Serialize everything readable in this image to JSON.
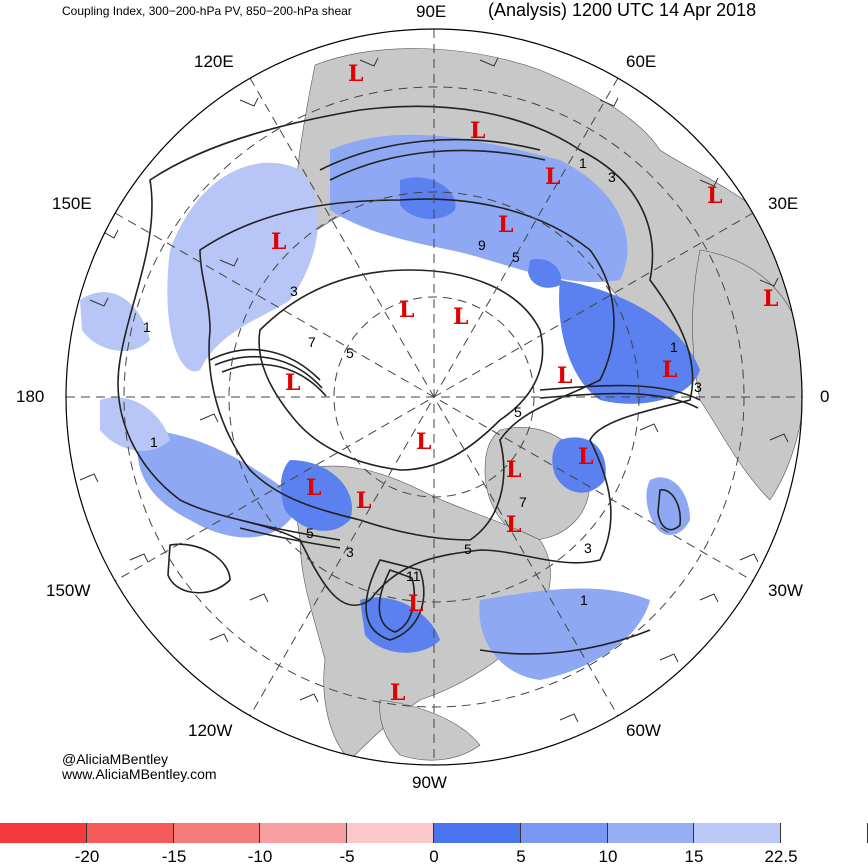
{
  "header": {
    "left": "Coupling Index, 300−200-hPa PV, 850−200-hPa shear",
    "right": "(Analysis) 1200 UTC 14 Apr 2018"
  },
  "longitudes": {
    "e90": "90E",
    "e60": "60E",
    "e120": "120E",
    "e150": "150E",
    "e30": "30E",
    "l180": "180",
    "l0": "0",
    "w150": "150W",
    "w30": "30W",
    "w120": "120W",
    "w60": "60W",
    "w90": "90W"
  },
  "credits": {
    "handle": "@AliciaMBentley",
    "site": "www.AliciaMBentley.com"
  },
  "lows": {
    "symbol": "L",
    "count": 21
  },
  "contour_labels": [
    "1",
    "3",
    "5",
    "7",
    "9",
    "11"
  ],
  "colorbar": {
    "colors": [
      "#f43b3b",
      "#f5595a",
      "#f67c7c",
      "#f8a0a1",
      "#fbc8c9",
      "#4a73f0",
      "#7897f2",
      "#98aef4",
      "#b9c8f7",
      "#ffffff"
    ],
    "ticks": [
      "-20",
      "-15",
      "-10",
      "-5",
      "0",
      "5",
      "10",
      "15",
      "22.5"
    ]
  },
  "palette": {
    "land": "#c8c8c8",
    "blue_dark": "#5b80ef",
    "blue_mid": "#8ea8f3",
    "blue_light": "#b7c6f7",
    "low_color": "#e00000"
  }
}
